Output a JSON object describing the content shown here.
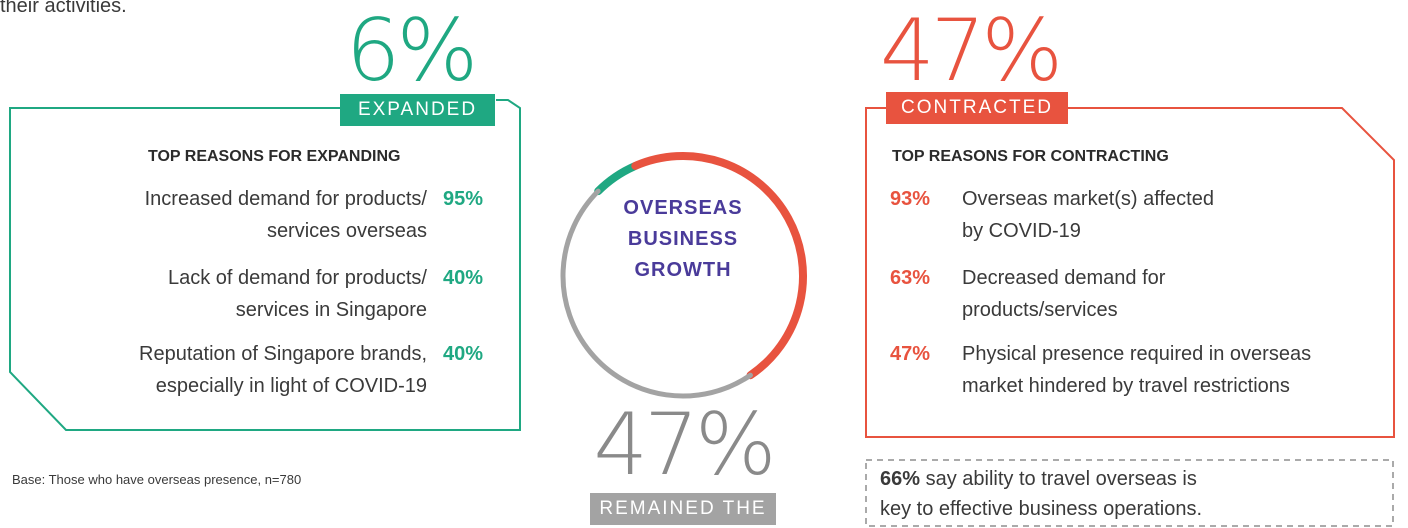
{
  "intro_tail": "their activities.",
  "chart_data": {
    "type": "donut",
    "title": "OVERSEAS BUSINESS GROWTH",
    "categories": [
      "EXPANDED",
      "CONTRACTED",
      "REMAINED THE SAME"
    ],
    "values": [
      6,
      47,
      47
    ],
    "value_labels": [
      "6%",
      "47%",
      "47%"
    ],
    "colors": [
      "#1fa882",
      "#e8533f",
      "#a3a3a3"
    ]
  },
  "expanding": {
    "heading": "TOP REASONS FOR EXPANDING",
    "reasons": [
      {
        "text": "Increased demand for products/\nservices overseas",
        "value": "95%"
      },
      {
        "text": "Lack of demand for products/\nservices in Singapore",
        "value": "40%"
      },
      {
        "text": "Reputation of Singapore brands,\nespecially in light of COVID-19",
        "value": "40%"
      }
    ]
  },
  "contracting": {
    "heading": "TOP REASONS FOR CONTRACTING",
    "reasons": [
      {
        "text": "Overseas market(s) affected\nby COVID-19",
        "value": "93%"
      },
      {
        "text": "Decreased demand for\nproducts/services",
        "value": "63%"
      },
      {
        "text": "Physical presence required in overseas\nmarket hindered by travel restrictions",
        "value": "47%"
      }
    ]
  },
  "base_note": "Base: Those who have overseas presence, n=780",
  "callout": {
    "value": "66%",
    "text": "say ability to travel overseas is\nkey to effective business operations."
  }
}
